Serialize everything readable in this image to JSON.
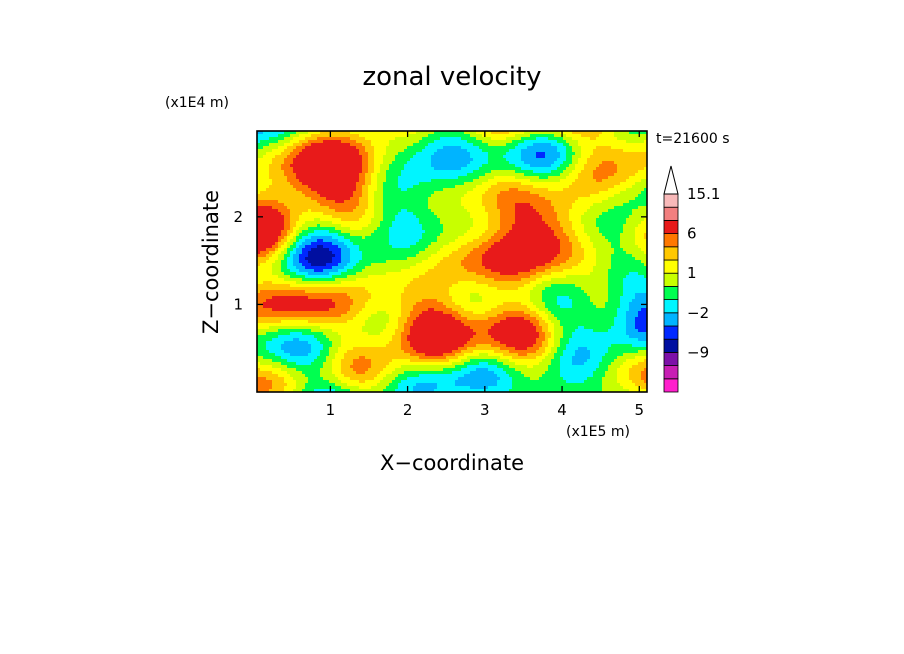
{
  "chart_data": {
    "type": "heatmap",
    "title": "zonal velocity",
    "xlabel": "X−coordinate",
    "ylabel": "Z−coordinate",
    "x_scale_note": "(x1E5 m)",
    "y_scale_note": "(x1E4 m)",
    "time_label": "t=21600 s",
    "xlim": [
      0.05,
      5.1
    ],
    "ylim": [
      0.0,
      2.98
    ],
    "xticks": [
      1,
      2,
      3,
      4,
      5
    ],
    "yticks": [
      1,
      2
    ],
    "colorbar": {
      "levels": [
        -15,
        -12,
        -9,
        -6,
        -3,
        -2,
        -1,
        0,
        1,
        2,
        3,
        6,
        9,
        12,
        15.1
      ],
      "labeled_values": [
        "15.1",
        "6",
        "1",
        "−2",
        "−9"
      ],
      "colors": [
        "#ff1fcc",
        "#c81eb4",
        "#7d10a8",
        "#000fa0",
        "#0028ff",
        "#00b4ff",
        "#00f5ff",
        "#00ff50",
        "#c8ff00",
        "#ffff00",
        "#ffc800",
        "#ff7800",
        "#e81a1a",
        "#f27f7f",
        "#f8b9b9"
      ],
      "extend": "max",
      "extend_color": "#ffffff"
    }
  }
}
